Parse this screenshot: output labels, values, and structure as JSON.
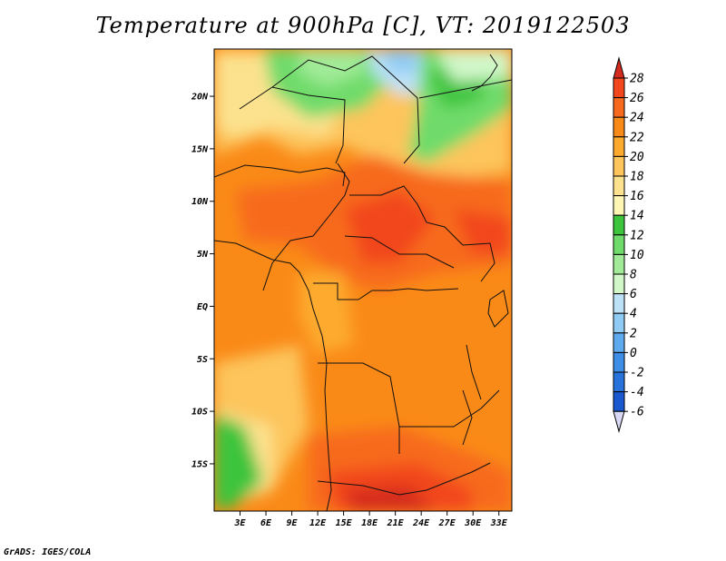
{
  "title": "Temperature at 900hPa [C], VT: 2019122503",
  "credit": "GrADS: IGES/COLA",
  "map": {
    "variable": "Temperature",
    "level": "900hPa",
    "units": "C",
    "valid_time": "2019122503",
    "lon_range": [
      0,
      34.5
    ],
    "lat_range": [
      -19.5,
      24.5
    ],
    "lat_ticks": [
      {
        "value": 20,
        "label": "20N"
      },
      {
        "value": 15,
        "label": "15N"
      },
      {
        "value": 10,
        "label": "10N"
      },
      {
        "value": 5,
        "label": "5N"
      },
      {
        "value": 0,
        "label": "EQ"
      },
      {
        "value": -5,
        "label": "5S"
      },
      {
        "value": -10,
        "label": "10S"
      },
      {
        "value": -15,
        "label": "15S"
      }
    ],
    "lon_ticks": [
      {
        "value": 3,
        "label": "3E"
      },
      {
        "value": 6,
        "label": "6E"
      },
      {
        "value": 9,
        "label": "9E"
      },
      {
        "value": 12,
        "label": "12E"
      },
      {
        "value": 15,
        "label": "15E"
      },
      {
        "value": 18,
        "label": "18E"
      },
      {
        "value": 21,
        "label": "21E"
      },
      {
        "value": 24,
        "label": "24E"
      },
      {
        "value": 27,
        "label": "27E"
      },
      {
        "value": 30,
        "label": "30E"
      },
      {
        "value": 33,
        "label": "33E"
      }
    ]
  },
  "colorbar": {
    "levels": [
      {
        "label": "28"
      },
      {
        "label": "26"
      },
      {
        "label": "24"
      },
      {
        "label": "22"
      },
      {
        "label": "20"
      },
      {
        "label": "18"
      },
      {
        "label": "16"
      },
      {
        "label": "14"
      },
      {
        "label": "12"
      },
      {
        "label": "10"
      },
      {
        "label": "8"
      },
      {
        "label": "6"
      },
      {
        "label": "4"
      },
      {
        "label": "2"
      },
      {
        "label": "0"
      },
      {
        "label": "-2"
      },
      {
        "label": "-4"
      },
      {
        "label": "-6"
      }
    ],
    "colors": [
      "#d42a1e",
      "#f2461c",
      "#f76a1e",
      "#fa8a18",
      "#fdaa2e",
      "#fdc55c",
      "#fce28e",
      "#fff6b4",
      "#3cc43c",
      "#6fdb6a",
      "#a1eb98",
      "#d1f7c9",
      "#bde2f7",
      "#8fcbf4",
      "#5eaaee",
      "#3e8ee8",
      "#2872dc",
      "#1a58d0",
      "#123aa8",
      "#0a1a78",
      "#d8d8f4"
    ]
  }
}
